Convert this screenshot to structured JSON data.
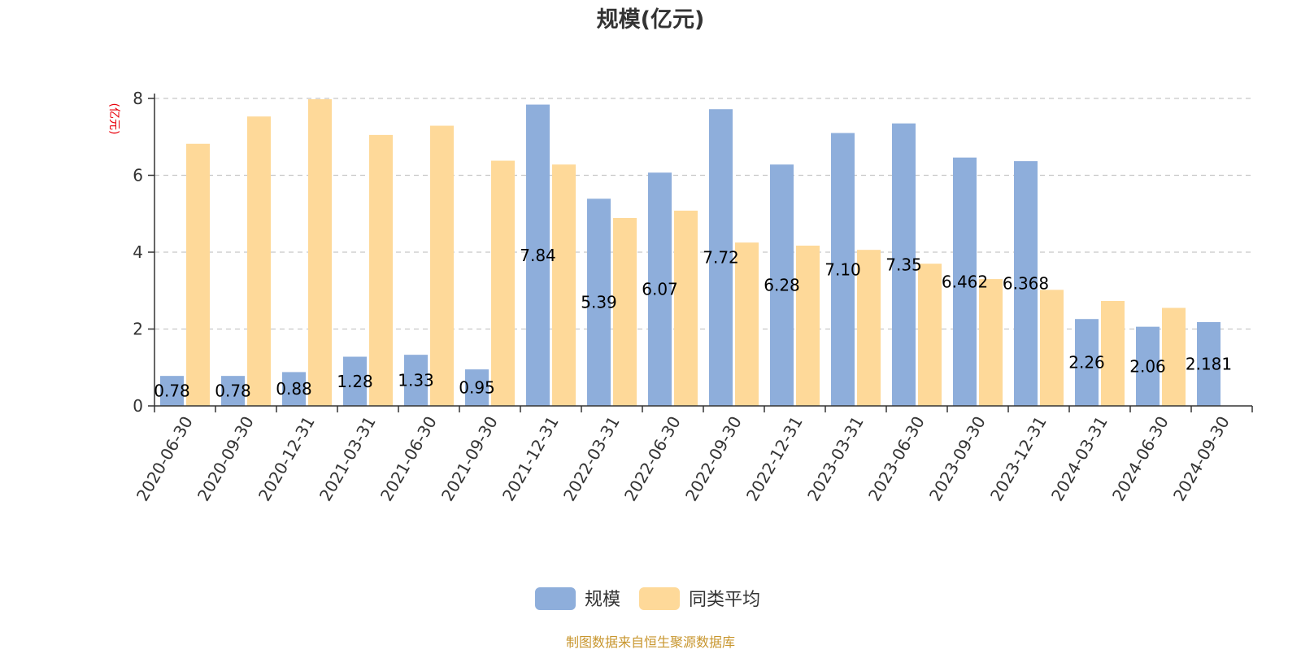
{
  "chart_data": {
    "type": "bar",
    "title": "规模(亿元)",
    "ylabel": "(亿元)",
    "xlabel": "",
    "ylim": [
      0,
      8
    ],
    "yticks": [
      "0",
      "2",
      "4",
      "6",
      "8"
    ],
    "grid": "horizontal-dashed",
    "legend_position": "bottom-center",
    "categories": [
      "2020-06-30",
      "2020-09-30",
      "2020-12-31",
      "2021-03-31",
      "2021-06-30",
      "2021-09-30",
      "2021-12-31",
      "2022-03-31",
      "2022-06-30",
      "2022-09-30",
      "2022-12-31",
      "2023-03-31",
      "2023-06-30",
      "2023-09-30",
      "2023-12-31",
      "2024-03-31",
      "2024-06-30",
      "2024-09-30"
    ],
    "series": [
      {
        "name": "规模",
        "color": "#8eaedb",
        "values": [
          0.78,
          0.78,
          0.88,
          1.28,
          1.33,
          0.95,
          7.84,
          5.39,
          6.07,
          7.72,
          6.28,
          7.1,
          7.35,
          6.462,
          6.368,
          2.26,
          2.06,
          2.181
        ],
        "labels": [
          "0.78",
          "0.78",
          "0.88",
          "1.28",
          "1.33",
          "0.95",
          "7.84",
          "5.39",
          "6.07",
          "7.72",
          "6.28",
          "7.10",
          "7.35",
          "6.462",
          "6.368",
          "2.26",
          "2.06",
          "2.181"
        ]
      },
      {
        "name": "同类平均",
        "color": "#fed999",
        "values": [
          6.82,
          7.53,
          7.98,
          7.05,
          7.29,
          6.38,
          6.28,
          4.89,
          5.08,
          4.25,
          4.17,
          4.06,
          3.7,
          3.3,
          3.02,
          2.73,
          2.55,
          null
        ]
      }
    ],
    "source": "制图数据来自恒生聚源数据库"
  }
}
